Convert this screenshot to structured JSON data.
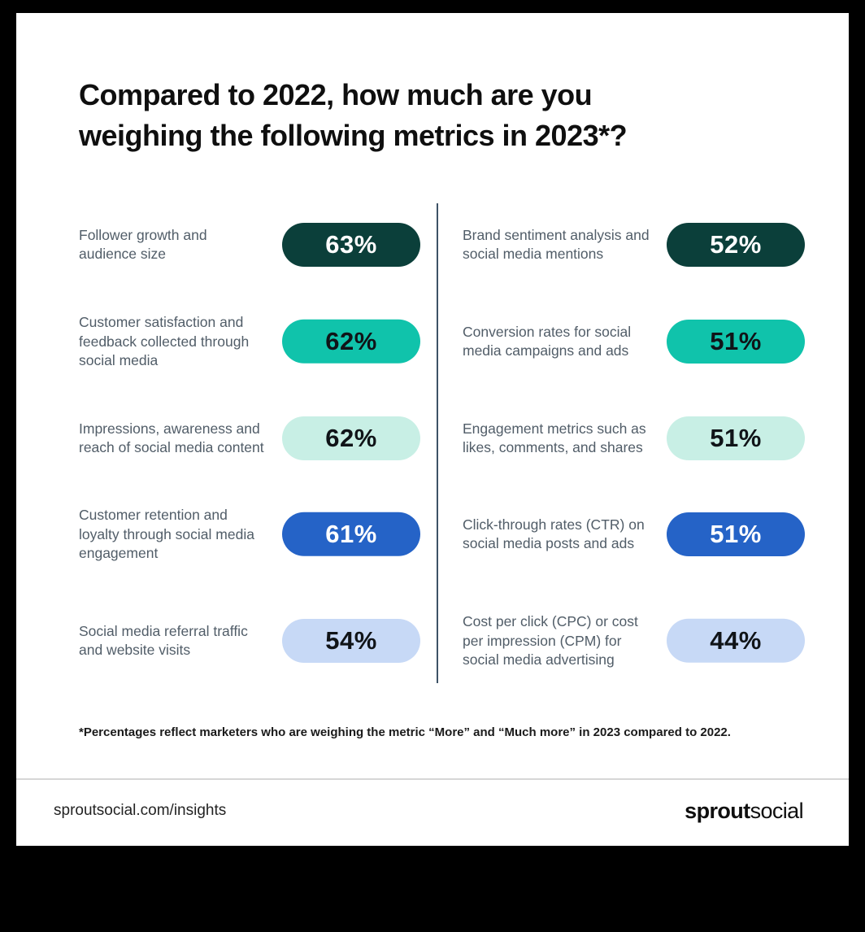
{
  "title": "Compared to 2022, how much are you weighing the following metrics in 2023*?",
  "colors": {
    "dark_teal": "#0b3f3a",
    "teal": "#10c3ab",
    "mint": "#c8efe5",
    "blue": "#2563c7",
    "periwinkle": "#c7d9f6",
    "ink": "#101418",
    "white": "#ffffff",
    "label_text": "#515d68",
    "divider": "#3d5266"
  },
  "items_left": [
    {
      "label": "Follower growth and audience size",
      "value": "63%",
      "bg": "#0b3f3a",
      "fg": "#ffffff"
    },
    {
      "label": "Customer satisfaction and feedback collected through social media",
      "value": "62%",
      "bg": "#10c3ab",
      "fg": "#101418"
    },
    {
      "label": "Impressions, awareness and reach of social media content",
      "value": "62%",
      "bg": "#c8efe5",
      "fg": "#101418"
    },
    {
      "label": "Customer retention and loyalty through social media engagement",
      "value": "61%",
      "bg": "#2563c7",
      "fg": "#ffffff"
    },
    {
      "label": "Social media referral traffic and website visits",
      "value": "54%",
      "bg": "#c7d9f6",
      "fg": "#101418"
    }
  ],
  "items_right": [
    {
      "label": "Brand sentiment analysis and social media mentions",
      "value": "52%",
      "bg": "#0b3f3a",
      "fg": "#ffffff"
    },
    {
      "label": "Conversion rates for social media campaigns and ads",
      "value": "51%",
      "bg": "#10c3ab",
      "fg": "#101418"
    },
    {
      "label": "Engagement metrics such as likes, comments, and shares",
      "value": "51%",
      "bg": "#c8efe5",
      "fg": "#101418"
    },
    {
      "label": "Click-through rates (CTR) on social media posts and ads",
      "value": "51%",
      "bg": "#2563c7",
      "fg": "#ffffff"
    },
    {
      "label": "Cost per click (CPC) or cost per impression (CPM) for social media advertising",
      "value": "44%",
      "bg": "#c7d9f6",
      "fg": "#101418"
    }
  ],
  "footnote": "*Percentages reflect marketers who are weighing the metric “More” and “Much more” in 2023 compared to 2022.",
  "footer": {
    "link": "sproutsocial.com/insights",
    "brand_bold": "sprout",
    "brand_light": "social"
  },
  "chart_data": {
    "type": "table",
    "title": "Compared to 2022, how much are you weighing the following metrics in 2023*?",
    "unit": "%",
    "categories": [
      "Follower growth and audience size",
      "Customer satisfaction and feedback collected through social media",
      "Impressions, awareness and reach of social media content",
      "Customer retention and loyalty through social media engagement",
      "Social media referral traffic and website visits",
      "Brand sentiment analysis and social media mentions",
      "Conversion rates for social media campaigns and ads",
      "Engagement metrics such as likes, comments, and shares",
      "Click-through rates (CTR) on social media posts and ads",
      "Cost per click (CPC) or cost per impression (CPM) for social media advertising"
    ],
    "values": [
      63,
      62,
      62,
      61,
      54,
      52,
      51,
      51,
      51,
      44
    ],
    "note": "*Percentages reflect marketers who are weighing the metric “More” and “Much more” in 2023 compared to 2022."
  }
}
